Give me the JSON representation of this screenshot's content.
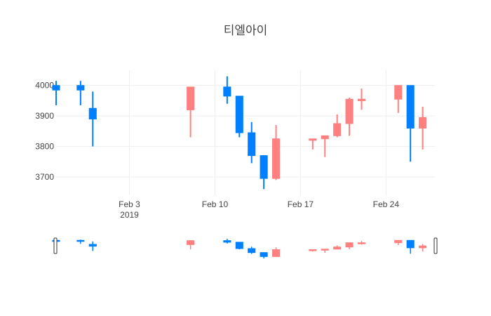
{
  "chart_data": {
    "type": "candlestick",
    "title": "티엘아이",
    "xlabel": "",
    "ylabel": "",
    "ylim": [
      3640,
      4050
    ],
    "xlim": [
      "2019-01-28",
      "2019-02-28"
    ],
    "y_ticks": [
      3700,
      3800,
      3900,
      4000
    ],
    "x_ticks": [
      {
        "date": "2019-02-03",
        "label": "Feb 3",
        "sublabel": "2019"
      },
      {
        "date": "2019-02-10",
        "label": "Feb 10",
        "sublabel": ""
      },
      {
        "date": "2019-02-17",
        "label": "Feb 17",
        "sublabel": ""
      },
      {
        "date": "2019-02-24",
        "label": "Feb 24",
        "sublabel": ""
      }
    ],
    "grid": true,
    "legend": "none",
    "rangeslider": true,
    "colors": {
      "increasing": "#ff8080",
      "decreasing": "#0080ff"
    },
    "candles": [
      {
        "date": "2019-01-28",
        "open": 4000,
        "high": 4015,
        "low": 3935,
        "close": 3985
      },
      {
        "date": "2019-01-30",
        "open": 4000,
        "high": 4015,
        "low": 3935,
        "close": 3985
      },
      {
        "date": "2019-01-31",
        "open": 3925,
        "high": 3980,
        "low": 3800,
        "close": 3890
      },
      {
        "date": "2019-02-08",
        "open": 3920,
        "high": 3995,
        "low": 3830,
        "close": 3995
      },
      {
        "date": "2019-02-11",
        "open": 3995,
        "high": 4030,
        "low": 3940,
        "close": 3965
      },
      {
        "date": "2019-02-12",
        "open": 3965,
        "high": 3965,
        "low": 3830,
        "close": 3845
      },
      {
        "date": "2019-02-13",
        "open": 3845,
        "high": 3880,
        "low": 3745,
        "close": 3770
      },
      {
        "date": "2019-02-14",
        "open": 3770,
        "high": 3770,
        "low": 3660,
        "close": 3695
      },
      {
        "date": "2019-02-15",
        "open": 3695,
        "high": 3870,
        "low": 3690,
        "close": 3825
      },
      {
        "date": "2019-02-18",
        "open": 3820,
        "high": 3825,
        "low": 3790,
        "close": 3825
      },
      {
        "date": "2019-02-19",
        "open": 3825,
        "high": 3835,
        "low": 3765,
        "close": 3835
      },
      {
        "date": "2019-02-20",
        "open": 3835,
        "high": 3905,
        "low": 3830,
        "close": 3875
      },
      {
        "date": "2019-02-21",
        "open": 3875,
        "high": 3960,
        "low": 3835,
        "close": 3955
      },
      {
        "date": "2019-02-22",
        "open": 3950,
        "high": 3990,
        "low": 3920,
        "close": 3955
      },
      {
        "date": "2019-02-25",
        "open": 3955,
        "high": 4000,
        "low": 3910,
        "close": 4000
      },
      {
        "date": "2019-02-26",
        "open": 4000,
        "high": 4000,
        "low": 3750,
        "close": 3860
      },
      {
        "date": "2019-02-27",
        "open": 3860,
        "high": 3930,
        "low": 3790,
        "close": 3895
      }
    ]
  }
}
